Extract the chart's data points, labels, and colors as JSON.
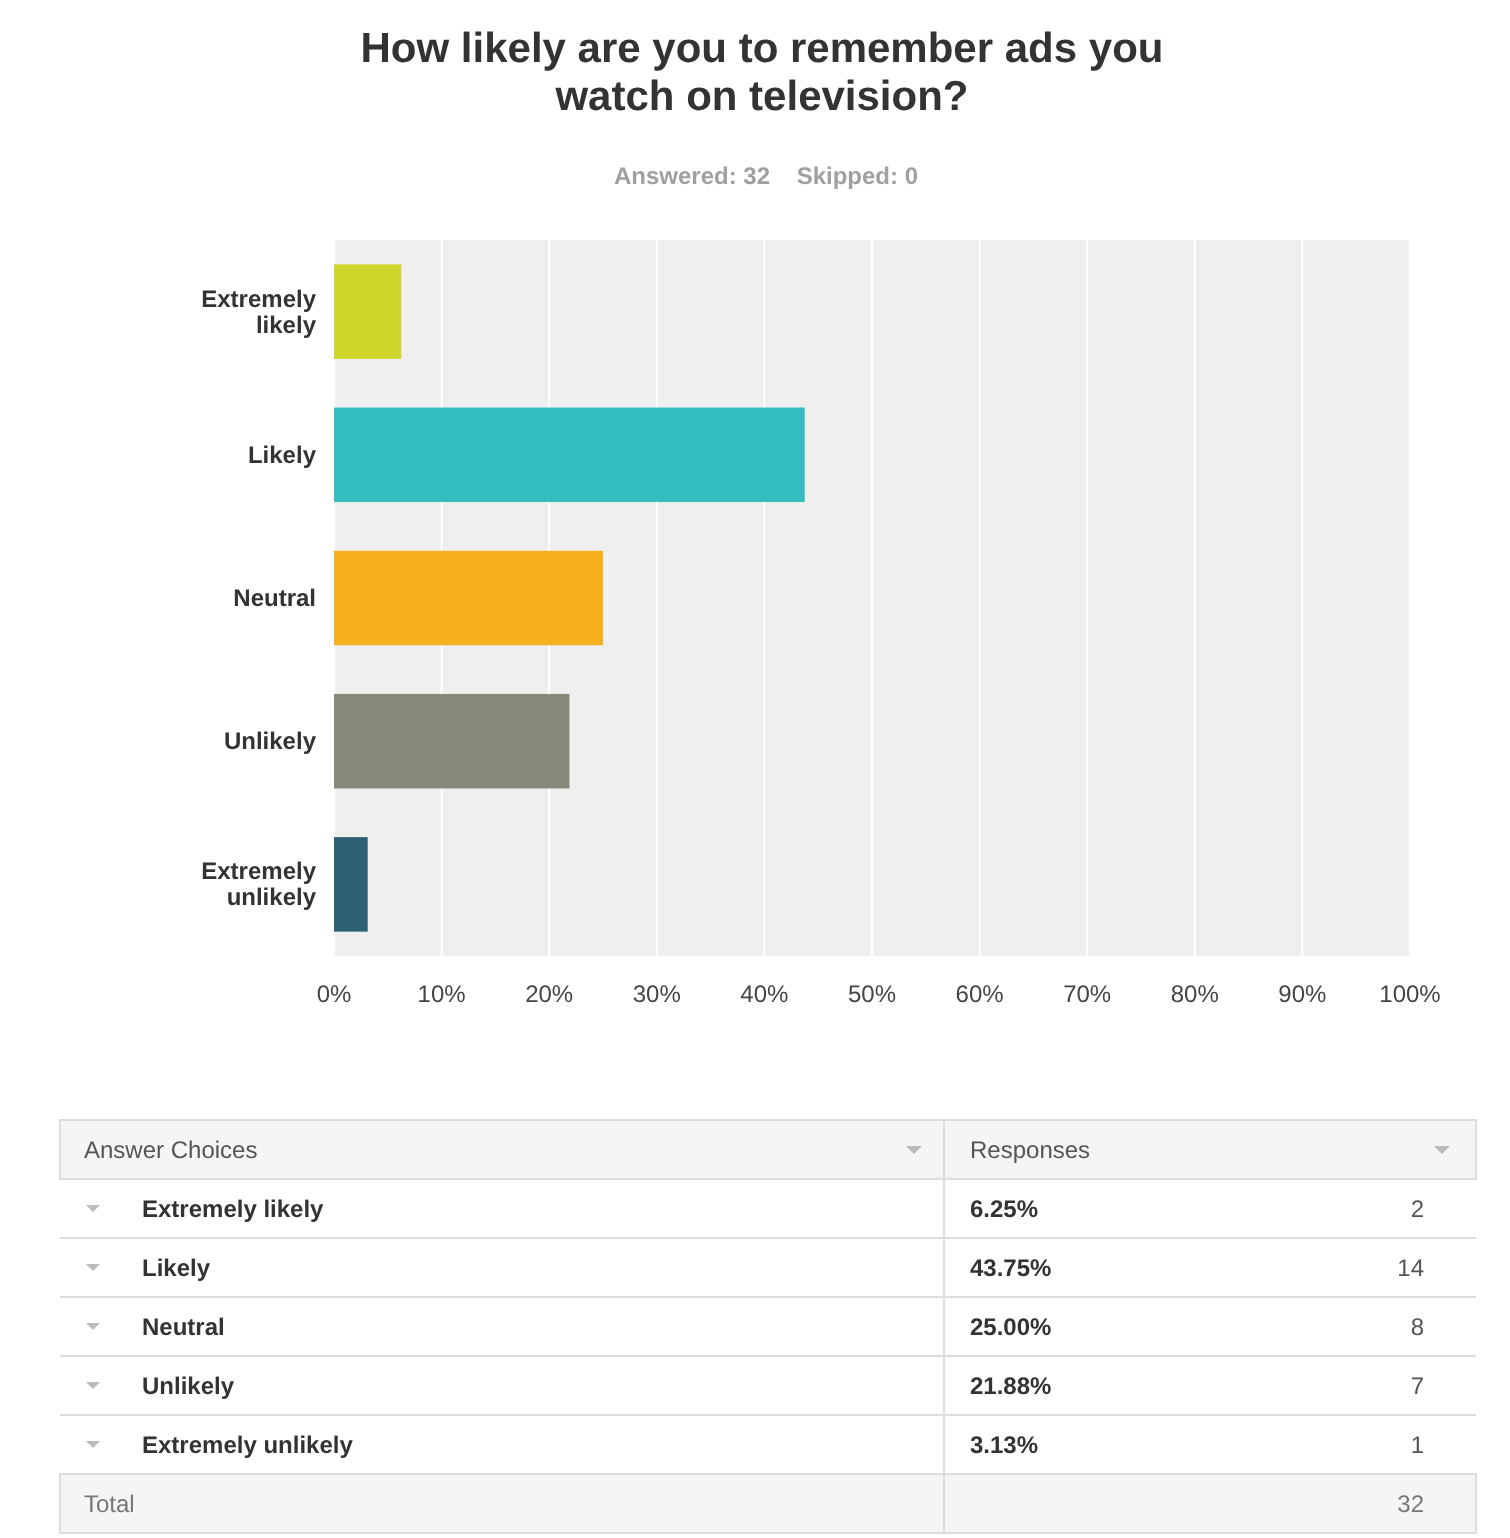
{
  "chart_data": {
    "type": "bar",
    "orientation": "horizontal",
    "title": "How likely are you to remember ads you watch on television?",
    "subtitle": "Answered: 32    Skipped: 0",
    "categories": [
      "Extremely likely",
      "Likely",
      "Neutral",
      "Unlikely",
      "Extremely unlikely"
    ],
    "values": [
      6.25,
      43.75,
      25.0,
      21.88,
      3.13
    ],
    "colors": [
      "#cfd62b",
      "#35bec0",
      "#f6b01f",
      "#87887a",
      "#2d6172"
    ],
    "xlim": [
      0,
      100
    ],
    "xticks": [
      {
        "value": 0,
        "label": "0%"
      },
      {
        "value": 10,
        "label": "10%"
      },
      {
        "value": 20,
        "label": "20%"
      },
      {
        "value": 30,
        "label": "30%"
      },
      {
        "value": 40,
        "label": "40%"
      },
      {
        "value": 50,
        "label": "50%"
      },
      {
        "value": 60,
        "label": "60%"
      },
      {
        "value": 70,
        "label": "70%"
      },
      {
        "value": 80,
        "label": "80%"
      },
      {
        "value": 90,
        "label": "90%"
      },
      {
        "value": 100,
        "label": "100%"
      }
    ],
    "grid": "x",
    "annotations": [
      "Answer Choices",
      "Responses",
      "2",
      "14",
      "8",
      "7",
      "1",
      "Total",
      "32",
      "6.25%",
      "43.75%",
      "25.00%",
      "21.88%",
      "3.13%"
    ]
  }
}
